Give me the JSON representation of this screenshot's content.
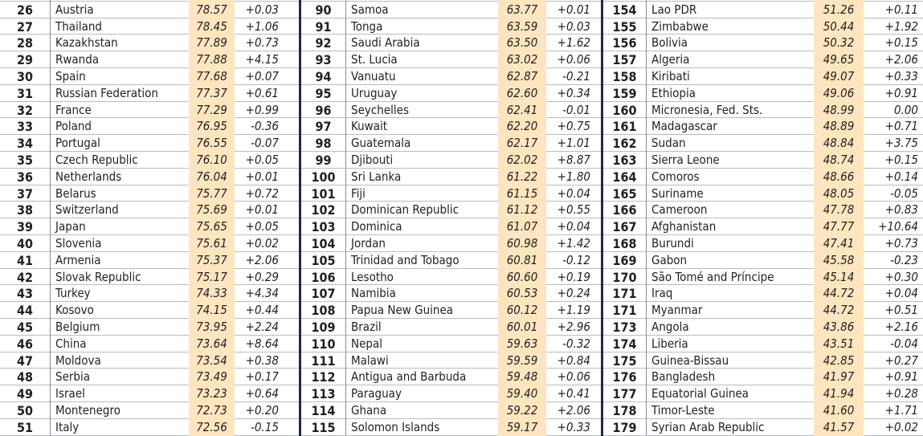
{
  "columns": [
    {
      "rows": [
        {
          "rank": "",
          "country": "",
          "score": "",
          "change": ""
        },
        {
          "rank": "26",
          "country": "Austria",
          "score": "78.57",
          "change": "+0.03"
        },
        {
          "rank": "27",
          "country": "Thailand",
          "score": "78.45",
          "change": "+1.06"
        },
        {
          "rank": "28",
          "country": "Kazakhstan",
          "score": "77.89",
          "change": "+0.73"
        },
        {
          "rank": "29",
          "country": "Rwanda",
          "score": "77.88",
          "change": "+4.15"
        },
        {
          "rank": "30",
          "country": "Spain",
          "score": "77.68",
          "change": "+0.07"
        },
        {
          "rank": "31",
          "country": "Russian Federation",
          "score": "77.37",
          "change": "+0.61"
        },
        {
          "rank": "32",
          "country": "France",
          "score": "77.29",
          "change": "+0.99"
        },
        {
          "rank": "33",
          "country": "Poland",
          "score": "76.95",
          "change": "-0.36"
        },
        {
          "rank": "34",
          "country": "Portugal",
          "score": "76.55",
          "change": "-0.07"
        },
        {
          "rank": "35",
          "country": "Czech Republic",
          "score": "76.10",
          "change": "+0.05"
        },
        {
          "rank": "36",
          "country": "Netherlands",
          "score": "76.04",
          "change": "+0.01"
        },
        {
          "rank": "37",
          "country": "Belarus",
          "score": "75.77",
          "change": "+0.72"
        },
        {
          "rank": "38",
          "country": "Switzerland",
          "score": "75.69",
          "change": "+0.01"
        },
        {
          "rank": "39",
          "country": "Japan",
          "score": "75.65",
          "change": "+0.05"
        },
        {
          "rank": "40",
          "country": "Slovenia",
          "score": "75.61",
          "change": "+0.02"
        },
        {
          "rank": "41",
          "country": "Armenia",
          "score": "75.37",
          "change": "+2.06"
        },
        {
          "rank": "42",
          "country": "Slovak Republic",
          "score": "75.17",
          "change": "+0.29"
        },
        {
          "rank": "43",
          "country": "Turkey",
          "score": "74.33",
          "change": "+4.34"
        },
        {
          "rank": "44",
          "country": "Kosovo",
          "score": "74.15",
          "change": "+0.44"
        },
        {
          "rank": "45",
          "country": "Belgium",
          "score": "73.95",
          "change": "+2.24"
        },
        {
          "rank": "46",
          "country": "China",
          "score": "73.64",
          "change": "+8.64"
        },
        {
          "rank": "47",
          "country": "Moldova",
          "score": "73.54",
          "change": "+0.38"
        },
        {
          "rank": "48",
          "country": "Serbia",
          "score": "73.49",
          "change": "+0.17"
        },
        {
          "rank": "49",
          "country": "Israel",
          "score": "73.23",
          "change": "+0.64"
        },
        {
          "rank": "50",
          "country": "Montenegro",
          "score": "72.73",
          "change": "+0.20"
        },
        {
          "rank": "51",
          "country": "Italy",
          "score": "72.56",
          "change": "-0.15"
        }
      ]
    },
    {
      "rows": [
        {
          "rank": "",
          "country": "",
          "score": "",
          "change": ""
        },
        {
          "rank": "90",
          "country": "Samoa",
          "score": "63.77",
          "change": "+0.01"
        },
        {
          "rank": "91",
          "country": "Tonga",
          "score": "63.59",
          "change": "+0.03"
        },
        {
          "rank": "92",
          "country": "Saudi Arabia",
          "score": "63.50",
          "change": "+1.62"
        },
        {
          "rank": "93",
          "country": "St. Lucia",
          "score": "63.02",
          "change": "+0.06"
        },
        {
          "rank": "94",
          "country": "Vanuatu",
          "score": "62.87",
          "change": "-0.21"
        },
        {
          "rank": "95",
          "country": "Uruguay",
          "score": "62.60",
          "change": "+0.34"
        },
        {
          "rank": "96",
          "country": "Seychelles",
          "score": "62.41",
          "change": "-0.01"
        },
        {
          "rank": "97",
          "country": "Kuwait",
          "score": "62.20",
          "change": "+0.75"
        },
        {
          "rank": "98",
          "country": "Guatemala",
          "score": "62.17",
          "change": "+1.01"
        },
        {
          "rank": "99",
          "country": "Djibouti",
          "score": "62.02",
          "change": "+8.87"
        },
        {
          "rank": "100",
          "country": "Sri Lanka",
          "score": "61.22",
          "change": "+1.80"
        },
        {
          "rank": "101",
          "country": "Fiji",
          "score": "61.15",
          "change": "+0.04"
        },
        {
          "rank": "102",
          "country": "Dominican Republic",
          "score": "61.12",
          "change": "+0.55"
        },
        {
          "rank": "103",
          "country": "Dominica",
          "score": "61.07",
          "change": "+0.04"
        },
        {
          "rank": "104",
          "country": "Jordan",
          "score": "60.98",
          "change": "+1.42"
        },
        {
          "rank": "105",
          "country": "Trinidad and Tobago",
          "score": "60.81",
          "change": "-0.12"
        },
        {
          "rank": "106",
          "country": "Lesotho",
          "score": "60.60",
          "change": "+0.19"
        },
        {
          "rank": "107",
          "country": "Namibia",
          "score": "60.53",
          "change": "+0.24"
        },
        {
          "rank": "108",
          "country": "Papua New Guinea",
          "score": "60.12",
          "change": "+1.19"
        },
        {
          "rank": "109",
          "country": "Brazil",
          "score": "60.01",
          "change": "+2.96"
        },
        {
          "rank": "110",
          "country": "Nepal",
          "score": "59.63",
          "change": "-0.32"
        },
        {
          "rank": "111",
          "country": "Malawi",
          "score": "59.59",
          "change": "+0.84"
        },
        {
          "rank": "112",
          "country": "Antigua and Barbuda",
          "score": "59.48",
          "change": "+0.06"
        },
        {
          "rank": "113",
          "country": "Paraguay",
          "score": "59.40",
          "change": "+0.41"
        },
        {
          "rank": "114",
          "country": "Ghana",
          "score": "59.22",
          "change": "+2.06"
        },
        {
          "rank": "115",
          "country": "Solomon Islands",
          "score": "59.17",
          "change": "+0.33"
        }
      ]
    },
    {
      "rows": [
        {
          "rank": "",
          "country": "",
          "score": "",
          "change": ""
        },
        {
          "rank": "154",
          "country": "Lao PDR",
          "score": "51.26",
          "change": "+0.11"
        },
        {
          "rank": "155",
          "country": "Zimbabwe",
          "score": "50.44",
          "change": "+1.92"
        },
        {
          "rank": "156",
          "country": "Bolivia",
          "score": "50.32",
          "change": "+0.15"
        },
        {
          "rank": "157",
          "country": "Algeria",
          "score": "49.65",
          "change": "+2.06"
        },
        {
          "rank": "158",
          "country": "Kiribati",
          "score": "49.07",
          "change": "+0.33"
        },
        {
          "rank": "159",
          "country": "Ethiopia",
          "score": "49.06",
          "change": "+0.91"
        },
        {
          "rank": "160",
          "country": "Micronesia, Fed. Sts.",
          "score": "48.99",
          "change": "0.00"
        },
        {
          "rank": "161",
          "country": "Madagascar",
          "score": "48.89",
          "change": "+0.71"
        },
        {
          "rank": "162",
          "country": "Sudan",
          "score": "48.84",
          "change": "+3.75"
        },
        {
          "rank": "163",
          "country": "Sierra Leone",
          "score": "48.74",
          "change": "+0.15"
        },
        {
          "rank": "164",
          "country": "Comoros",
          "score": "48.66",
          "change": "+0.14"
        },
        {
          "rank": "165",
          "country": "Suriname",
          "score": "48.05",
          "change": "-0.05"
        },
        {
          "rank": "166",
          "country": "Cameroon",
          "score": "47.78",
          "change": "+0.83"
        },
        {
          "rank": "167",
          "country": "Afghanistan",
          "score": "47.77",
          "change": "+10.64"
        },
        {
          "rank": "168",
          "country": "Burundi",
          "score": "47.41",
          "change": "+0.73"
        },
        {
          "rank": "169",
          "country": "Gabon",
          "score": "45.58",
          "change": "-0.23"
        },
        {
          "rank": "170",
          "country": "São Tomé and Príncipe",
          "score": "45.14",
          "change": "+0.30"
        },
        {
          "rank": "171",
          "country": "Iraq",
          "score": "44.72",
          "change": "+0.04"
        },
        {
          "rank": "171",
          "country": "Myanmar",
          "score": "44.72",
          "change": "+0.51"
        },
        {
          "rank": "173",
          "country": "Angola",
          "score": "43.86",
          "change": "+2.16"
        },
        {
          "rank": "174",
          "country": "Liberia",
          "score": "43.51",
          "change": "-0.04"
        },
        {
          "rank": "175",
          "country": "Guinea-Bissau",
          "score": "42.85",
          "change": "+0.27"
        },
        {
          "rank": "176",
          "country": "Bangladesh",
          "score": "41.97",
          "change": "+0.91"
        },
        {
          "rank": "177",
          "country": "Equatorial Guinea",
          "score": "41.94",
          "change": "+0.28"
        },
        {
          "rank": "178",
          "country": "Timor-Leste",
          "score": "41.60",
          "change": "+1.71"
        },
        {
          "rank": "179",
          "country": "Syrian Arab Republic",
          "score": "41.57",
          "change": "+0.02"
        }
      ]
    }
  ],
  "colors": {
    "score_bg": "#fde6bf",
    "separator": "#1f2a44",
    "rule": "#b9bcc4"
  }
}
